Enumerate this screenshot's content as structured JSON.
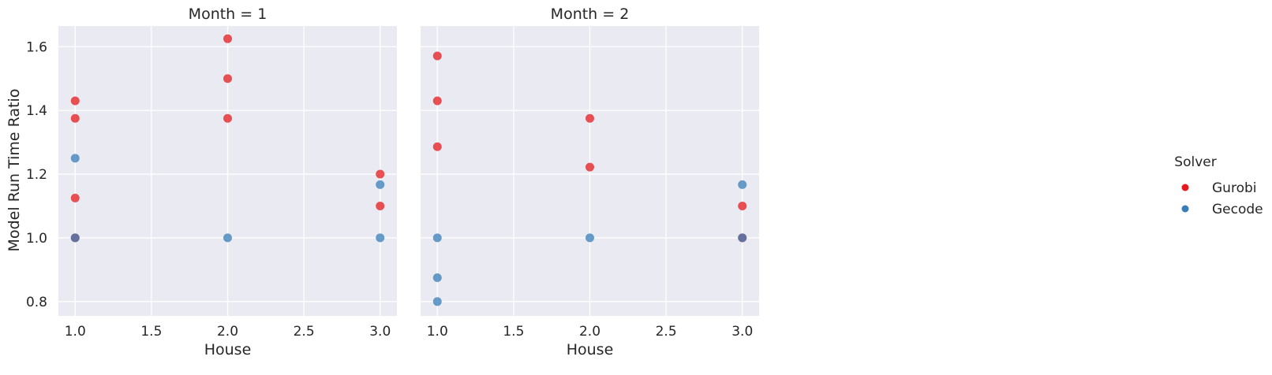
{
  "chart_data": {
    "type": "scatter",
    "ylabel": "Model Run Time Ratio",
    "xlabel": "House",
    "xlim": [
      0.89,
      3.11
    ],
    "ylim": [
      0.755,
      1.665
    ],
    "xticks": [
      1.0,
      1.5,
      2.0,
      2.5,
      3.0
    ],
    "xtick_labels": [
      "1.0",
      "1.5",
      "2.0",
      "2.5",
      "3.0"
    ],
    "yticks": [
      0.8,
      1.0,
      1.2,
      1.4,
      1.6
    ],
    "ytick_labels": [
      "0.8",
      "1.0",
      "1.2",
      "1.4",
      "1.6"
    ],
    "grid": true,
    "legend": {
      "title": "Solver",
      "placement": "right",
      "entries": [
        {
          "label": "Gurobi",
          "color": "#e41a1c"
        },
        {
          "label": "Gecode",
          "color": "#377eb8"
        }
      ]
    },
    "panels": [
      {
        "title": "Month = 1",
        "series": [
          {
            "name": "Gurobi",
            "color": "#e41a1c",
            "points": [
              [
                1.0,
                1.43
              ],
              [
                1.0,
                1.375
              ],
              [
                1.0,
                1.125
              ],
              [
                1.0,
                1.0
              ],
              [
                2.0,
                1.625
              ],
              [
                2.0,
                1.5
              ],
              [
                2.0,
                1.375
              ],
              [
                3.0,
                1.2
              ],
              [
                3.0,
                1.1
              ]
            ]
          },
          {
            "name": "Gecode",
            "color": "#377eb8",
            "points": [
              [
                1.0,
                1.25
              ],
              [
                1.0,
                1.0
              ],
              [
                2.0,
                1.0
              ],
              [
                3.0,
                1.167
              ],
              [
                3.0,
                1.0
              ]
            ]
          }
        ]
      },
      {
        "title": "Month = 2",
        "series": [
          {
            "name": "Gurobi",
            "color": "#e41a1c",
            "points": [
              [
                1.0,
                1.571
              ],
              [
                1.0,
                1.43
              ],
              [
                1.0,
                1.286
              ],
              [
                2.0,
                1.375
              ],
              [
                2.0,
                1.222
              ],
              [
                3.0,
                1.1
              ],
              [
                3.0,
                1.0
              ]
            ]
          },
          {
            "name": "Gecode",
            "color": "#377eb8",
            "points": [
              [
                1.0,
                1.0
              ],
              [
                1.0,
                0.875
              ],
              [
                1.0,
                0.8
              ],
              [
                2.0,
                1.0
              ],
              [
                3.0,
                1.167
              ],
              [
                3.0,
                1.0
              ]
            ]
          }
        ]
      }
    ]
  }
}
